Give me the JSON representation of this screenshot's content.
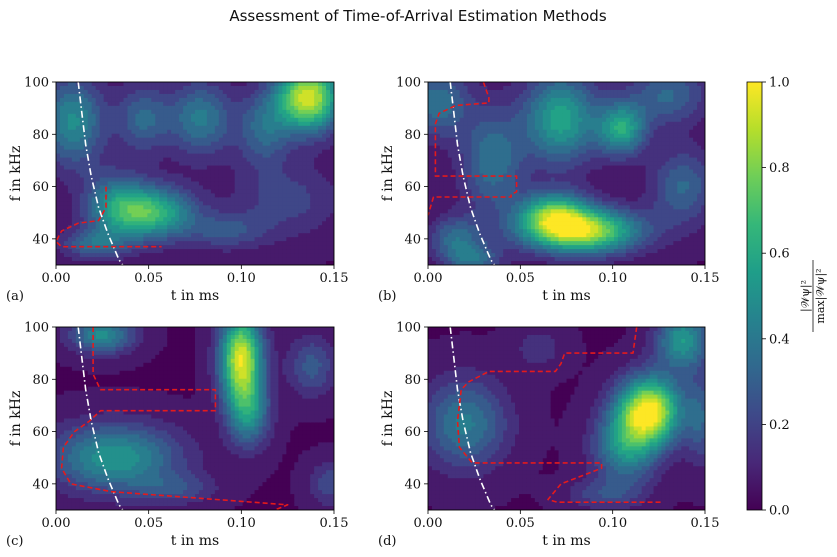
{
  "title": "Assessment of Time-of-Arrival Estimation Methods",
  "colorbar": {
    "label": "|W_ψ|² / max|W_ψ|²",
    "label_num": "|𝒲ψ|²",
    "label_den": "max|𝒲ψ|²",
    "range": [
      0.0,
      1.0
    ],
    "ticks": [
      "0.0",
      "0.2",
      "0.4",
      "0.6",
      "0.8",
      "1.0"
    ],
    "colormap": [
      "#440154",
      "#482878",
      "#3e4989",
      "#31688e",
      "#26828e",
      "#1f9e89",
      "#35b779",
      "#6ece58",
      "#b5de2b",
      "#fde725"
    ]
  },
  "chart_data": [
    {
      "type": "heatmap",
      "panel": "(a)",
      "xlabel": "t in ms",
      "ylabel": "f in kHz",
      "xlim": [
        0.0,
        0.15
      ],
      "ylim": [
        30,
        100
      ],
      "xticks": [
        "0.00",
        "0.05",
        "0.10",
        "0.15"
      ],
      "yticks": [
        "40",
        "60",
        "80",
        "100"
      ],
      "blobs": [
        {
          "t": 0.052,
          "f": 50,
          "st": 0.016,
          "sf": 7,
          "a": 0.62
        },
        {
          "t": 0.032,
          "f": 53,
          "st": 0.012,
          "sf": 9,
          "a": 0.35
        },
        {
          "t": 0.136,
          "f": 94,
          "st": 0.012,
          "sf": 9,
          "a": 0.92
        },
        {
          "t": 0.009,
          "f": 85,
          "st": 0.012,
          "sf": 12,
          "a": 0.45
        },
        {
          "t": 0.078,
          "f": 86,
          "st": 0.012,
          "sf": 10,
          "a": 0.38
        },
        {
          "t": 0.112,
          "f": 82,
          "st": 0.01,
          "sf": 10,
          "a": 0.3
        },
        {
          "t": 0.047,
          "f": 86,
          "st": 0.01,
          "sf": 9,
          "a": 0.3
        },
        {
          "t": 0.02,
          "f": 38,
          "st": 0.012,
          "sf": 4,
          "a": 0.3
        },
        {
          "t": 0.125,
          "f": 55,
          "st": 0.02,
          "sf": 10,
          "a": 0.18
        },
        {
          "t": 0.092,
          "f": 43,
          "st": 0.015,
          "sf": 5,
          "a": 0.22
        }
      ],
      "curve": {
        "t": [
          0.012,
          0.014,
          0.016,
          0.019,
          0.023,
          0.028,
          0.034,
          0.036
        ],
        "f": [
          100,
          88,
          76,
          64,
          52,
          42,
          32,
          30
        ]
      },
      "region": {
        "t": [
          0.027,
          0.027,
          0.023,
          0.012,
          0.003,
          0.0,
          0.003,
          0.02,
          0.057
        ],
        "f": [
          60,
          52,
          47,
          46,
          43,
          39,
          37,
          37,
          37
        ]
      }
    },
    {
      "type": "heatmap",
      "panel": "(b)",
      "xlabel": "t in ms",
      "ylabel": "f in kHz",
      "xlim": [
        0.0,
        0.15
      ],
      "ylim": [
        30,
        100
      ],
      "xticks": [
        "0.00",
        "0.05",
        "0.10",
        "0.15"
      ],
      "yticks": [
        "40",
        "60",
        "80",
        "100"
      ],
      "blobs": [
        {
          "t": 0.083,
          "f": 43,
          "st": 0.022,
          "sf": 6,
          "a": 0.88
        },
        {
          "t": 0.068,
          "f": 50,
          "st": 0.013,
          "sf": 6,
          "a": 0.55
        },
        {
          "t": 0.072,
          "f": 86,
          "st": 0.014,
          "sf": 12,
          "a": 0.55
        },
        {
          "t": 0.105,
          "f": 82,
          "st": 0.009,
          "sf": 7,
          "a": 0.55
        },
        {
          "t": 0.035,
          "f": 70,
          "st": 0.012,
          "sf": 14,
          "a": 0.35
        },
        {
          "t": 0.005,
          "f": 92,
          "st": 0.012,
          "sf": 9,
          "a": 0.35
        },
        {
          "t": 0.015,
          "f": 40,
          "st": 0.01,
          "sf": 6,
          "a": 0.32
        },
        {
          "t": 0.13,
          "f": 95,
          "st": 0.015,
          "sf": 8,
          "a": 0.3
        },
        {
          "t": 0.138,
          "f": 60,
          "st": 0.012,
          "sf": 10,
          "a": 0.3
        },
        {
          "t": 0.025,
          "f": 32,
          "st": 0.01,
          "sf": 4,
          "a": 0.3
        }
      ],
      "curve": {
        "t": [
          0.012,
          0.014,
          0.016,
          0.019,
          0.023,
          0.028,
          0.034,
          0.036
        ],
        "f": [
          100,
          88,
          76,
          64,
          52,
          42,
          32,
          30
        ]
      },
      "region": {
        "t": [
          0.03,
          0.033,
          0.033,
          0.015,
          0.006,
          0.004,
          0.004,
          0.048,
          0.048,
          0.045,
          0.045,
          0.003,
          0.0
        ],
        "f": [
          100,
          94,
          92,
          91,
          88,
          84,
          64,
          64,
          58,
          57,
          56,
          56,
          49
        ]
      }
    },
    {
      "type": "heatmap",
      "panel": "(c)",
      "xlabel": "t in ms",
      "ylabel": "f in kHz",
      "xlim": [
        0.0,
        0.15
      ],
      "ylim": [
        30,
        100
      ],
      "xticks": [
        "0.00",
        "0.05",
        "0.10",
        "0.15"
      ],
      "yticks": [
        "40",
        "60",
        "80",
        "100"
      ],
      "blobs": [
        {
          "t": 0.1,
          "f": 88,
          "st": 0.008,
          "sf": 12,
          "a": 0.92
        },
        {
          "t": 0.104,
          "f": 67,
          "st": 0.008,
          "sf": 9,
          "a": 0.42
        },
        {
          "t": 0.032,
          "f": 50,
          "st": 0.024,
          "sf": 9,
          "a": 0.5
        },
        {
          "t": 0.025,
          "f": 97,
          "st": 0.012,
          "sf": 5,
          "a": 0.45
        },
        {
          "t": 0.138,
          "f": 85,
          "st": 0.009,
          "sf": 8,
          "a": 0.25
        },
        {
          "t": 0.148,
          "f": 40,
          "st": 0.008,
          "sf": 6,
          "a": 0.2
        },
        {
          "t": 0.065,
          "f": 38,
          "st": 0.015,
          "sf": 4,
          "a": 0.18
        }
      ],
      "curve": {
        "t": [
          0.012,
          0.014,
          0.016,
          0.019,
          0.023,
          0.028,
          0.034,
          0.036
        ],
        "f": [
          100,
          88,
          76,
          64,
          52,
          42,
          32,
          30
        ]
      },
      "region": {
        "t": [
          0.02,
          0.02,
          0.02,
          0.024,
          0.086,
          0.086,
          0.024,
          0.018,
          0.01,
          0.004,
          0.003,
          0.008,
          0.03,
          0.125,
          0.118
        ],
        "f": [
          100,
          88,
          82,
          76,
          76,
          68,
          68,
          64,
          60,
          54,
          46,
          40,
          37,
          32,
          30
        ]
      }
    },
    {
      "type": "heatmap",
      "panel": "(d)",
      "xlabel": "t in ms",
      "ylabel": "f in kHz",
      "xlim": [
        0.0,
        0.15
      ],
      "ylim": [
        30,
        100
      ],
      "xticks": [
        "0.00",
        "0.05",
        "0.10",
        "0.15"
      ],
      "yticks": [
        "40",
        "60",
        "80",
        "100"
      ],
      "blobs": [
        {
          "t": 0.12,
          "f": 68,
          "st": 0.012,
          "sf": 9,
          "a": 0.95
        },
        {
          "t": 0.107,
          "f": 54,
          "st": 0.012,
          "sf": 10,
          "a": 0.45
        },
        {
          "t": 0.138,
          "f": 95,
          "st": 0.01,
          "sf": 8,
          "a": 0.5
        },
        {
          "t": 0.02,
          "f": 63,
          "st": 0.016,
          "sf": 12,
          "a": 0.38
        },
        {
          "t": 0.148,
          "f": 65,
          "st": 0.006,
          "sf": 12,
          "a": 0.25
        },
        {
          "t": 0.095,
          "f": 36,
          "st": 0.014,
          "sf": 4,
          "a": 0.18
        },
        {
          "t": 0.06,
          "f": 92,
          "st": 0.01,
          "sf": 6,
          "a": 0.12
        }
      ],
      "curve": {
        "t": [
          0.012,
          0.014,
          0.016,
          0.019,
          0.023,
          0.028,
          0.034,
          0.036
        ],
        "f": [
          100,
          88,
          76,
          64,
          52,
          42,
          32,
          30
        ]
      },
      "region": {
        "t": [
          0.113,
          0.111,
          0.074,
          0.072,
          0.069,
          0.033,
          0.022,
          0.018,
          0.016,
          0.017,
          0.024,
          0.094,
          0.094,
          0.072,
          0.065,
          0.07,
          0.127
        ],
        "f": [
          100,
          90,
          90,
          86,
          83,
          83,
          79,
          76,
          64,
          54,
          48,
          48,
          46,
          40,
          34,
          33,
          33
        ]
      }
    }
  ]
}
